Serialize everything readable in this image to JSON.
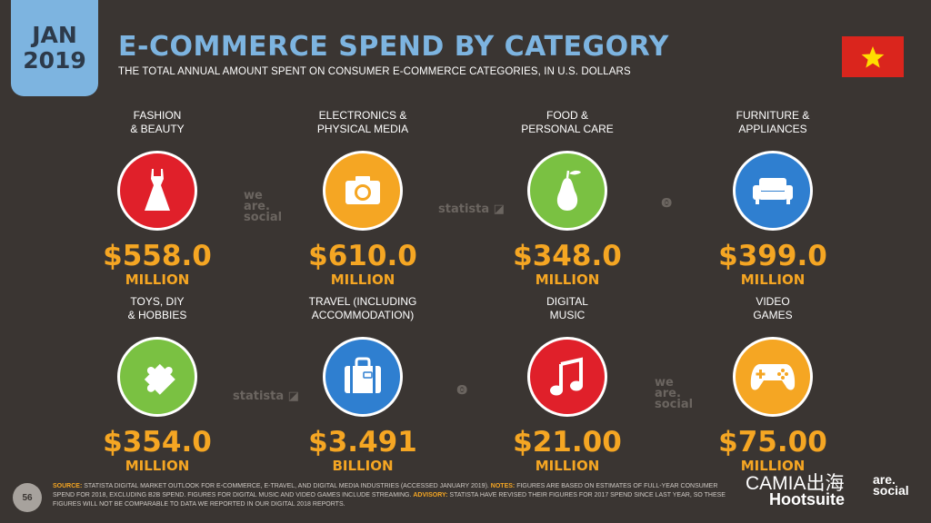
{
  "badge": {
    "month": "JAN",
    "year": "2019"
  },
  "title": "E-COMMERCE SPEND BY CATEGORY",
  "subtitle": "THE TOTAL ANNUAL AMOUNT SPENT ON CONSUMER E-COMMERCE CATEGORIES, IN U.S. DOLLARS",
  "flag": {
    "country": "Vietnam",
    "icon": "flag-star-icon"
  },
  "categories": [
    {
      "label": "FASHION\n& BEAUTY",
      "value": "$558.0",
      "unit": "MILLION",
      "color": "#e0202a",
      "icon": "dress-icon"
    },
    {
      "label": "ELECTRONICS &\nPHYSICAL MEDIA",
      "value": "$610.0",
      "unit": "MILLION",
      "color": "#f5a623",
      "icon": "camera-icon"
    },
    {
      "label": "FOOD &\nPERSONAL CARE",
      "value": "$348.0",
      "unit": "MILLION",
      "color": "#7ac142",
      "icon": "pear-icon"
    },
    {
      "label": "FURNITURE &\nAPPLIANCES",
      "value": "$399.0",
      "unit": "MILLION",
      "color": "#2f7fd0",
      "icon": "sofa-icon"
    },
    {
      "label": "TOYS, DIY\n& HOBBIES",
      "value": "$354.0",
      "unit": "MILLION",
      "color": "#7ac142",
      "icon": "puzzle-icon"
    },
    {
      "label": "TRAVEL (INCLUDING\nACCOMMODATION)",
      "value": "$3.491",
      "unit": "BILLION",
      "color": "#2f7fd0",
      "icon": "suitcase-icon"
    },
    {
      "label": "DIGITAL\nMUSIC",
      "value": "$21.00",
      "unit": "MILLION",
      "color": "#e0202a",
      "icon": "music-note-icon"
    },
    {
      "label": "VIDEO\nGAMES",
      "value": "$75.00",
      "unit": "MILLION",
      "color": "#f5a623",
      "icon": "gamepad-icon"
    }
  ],
  "watermarks": {
    "statista": "statista",
    "we_are_social": [
      "we",
      "are.",
      "social"
    ]
  },
  "page_number": "56",
  "footer": {
    "source_label": "SOURCE:",
    "source_text": " STATISTA DIGITAL MARKET OUTLOOK FOR E-COMMERCE, E-TRAVEL, AND DIGITAL MEDIA INDUSTRIES (ACCESSED JANUARY 2019). ",
    "notes_label": "NOTES:",
    "notes_text": " FIGURES ARE BASED ON ESTIMATES OF FULL-YEAR CONSUMER SPEND FOR 2018, EXCLUDING B2B SPEND. FIGURES FOR DIGITAL MUSIC AND VIDEO GAMES INCLUDE STREAMING. ",
    "advisory_label": "ADVISORY:",
    "advisory_text": " STATISTA HAVE REVISED THEIR FIGURES FOR 2017 SPEND SINCE LAST YEAR, SO THESE FIGURES WILL NOT BE COMPARABLE TO DATA WE REPORTED IN OUR DIGITAL 2018 REPORTS."
  },
  "brands": {
    "camia": "CAMIA出海",
    "hootsuite": "Hootsuite",
    "was": [
      "are.",
      "social"
    ]
  }
}
